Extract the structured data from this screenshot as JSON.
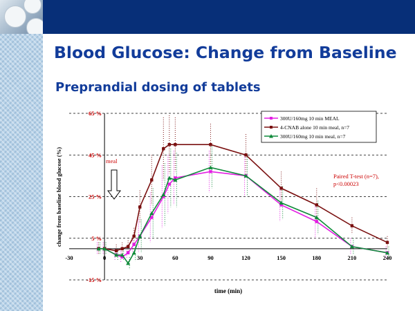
{
  "slide": {
    "title": "Blood Glucose: Change from Baseline",
    "subtitle": "Preprandial dosing of tablets"
  },
  "chart_data": {
    "type": "line",
    "xlabel": "time (min)",
    "ylabel": "change from baseline blood glucose (%)",
    "xlim": [
      -30,
      240
    ],
    "ylim": [
      -15,
      65
    ],
    "xticks": [
      -30,
      0,
      30,
      60,
      90,
      120,
      150,
      180,
      210,
      240
    ],
    "yticks": [
      -15,
      5,
      25,
      45,
      65
    ],
    "ytick_labels": [
      "-15 %",
      "5 %",
      "25 %",
      "45 %",
      "65 %"
    ],
    "legend_position": "top-right",
    "series": [
      {
        "name": "300U/160mg 10 min MEAL",
        "color": "#e31de3",
        "marker": "square",
        "points": [
          [
            -5,
            0
          ],
          [
            0,
            0
          ],
          [
            10,
            -3
          ],
          [
            15,
            -4
          ],
          [
            20,
            -2
          ],
          [
            25,
            2
          ],
          [
            30,
            6
          ],
          [
            40,
            15
          ],
          [
            50,
            25
          ],
          [
            55,
            31
          ],
          [
            60,
            34
          ],
          [
            90,
            37
          ],
          [
            120,
            35
          ],
          [
            150,
            21
          ],
          [
            180,
            13
          ],
          [
            210,
            1
          ],
          [
            240,
            -2
          ]
        ]
      },
      {
        "name": "4-CNAB alone 10 min meal, n=7",
        "color": "#7a1010",
        "marker": "square",
        "points": [
          [
            -5,
            0
          ],
          [
            0,
            0
          ],
          [
            10,
            -1
          ],
          [
            15,
            0
          ],
          [
            20,
            1
          ],
          [
            25,
            6
          ],
          [
            30,
            20
          ],
          [
            40,
            33
          ],
          [
            50,
            48
          ],
          [
            55,
            50
          ],
          [
            60,
            50
          ],
          [
            90,
            50
          ],
          [
            120,
            45
          ],
          [
            150,
            29
          ],
          [
            180,
            21
          ],
          [
            210,
            11
          ],
          [
            240,
            3
          ]
        ]
      },
      {
        "name": "300U/160mg 10 min meal, n=7",
        "color": "#0f8a3a",
        "marker": "triangle",
        "points": [
          [
            -5,
            0
          ],
          [
            0,
            0
          ],
          [
            10,
            -3
          ],
          [
            15,
            -3
          ],
          [
            20,
            -7
          ],
          [
            25,
            -2
          ],
          [
            30,
            6
          ],
          [
            40,
            17
          ],
          [
            50,
            26
          ],
          [
            55,
            34
          ],
          [
            60,
            33
          ],
          [
            90,
            39
          ],
          [
            120,
            35
          ],
          [
            150,
            22
          ],
          [
            180,
            15
          ],
          [
            210,
            1
          ],
          [
            240,
            -2
          ]
        ]
      }
    ],
    "annotations": {
      "meal_label": "meal",
      "stat_line1": "Paired T-test (n=7),",
      "stat_line2": "p<0.00023"
    }
  }
}
